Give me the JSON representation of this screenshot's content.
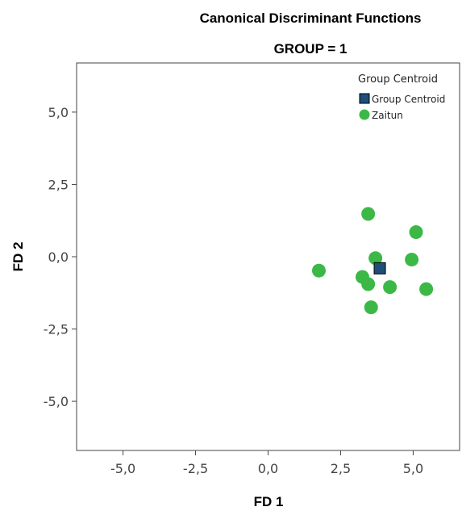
{
  "chart_data": {
    "type": "scatter",
    "title": "Canonical Discriminant Functions",
    "subtitle": "GROUP = 1",
    "xlabel": "FD 1",
    "ylabel": "FD 2",
    "xlim": [
      -6.6,
      6.6
    ],
    "ylim": [
      -6.7,
      6.7
    ],
    "xticks": [
      -5.0,
      -2.5,
      0.0,
      2.5,
      5.0
    ],
    "yticks": [
      -5.0,
      -2.5,
      0.0,
      2.5,
      5.0
    ],
    "xtick_labels": [
      "-5,0",
      "-2,5",
      "0,0",
      "2,5",
      "5,0"
    ],
    "ytick_labels": [
      "-5,0",
      "-2,5",
      "0,0",
      "2,5",
      "5,0"
    ],
    "grid": false,
    "legend": {
      "title": "Group Centroid",
      "placement": "top-right",
      "entries": [
        {
          "label": "Group Centroid",
          "marker": "square",
          "color": "#1f4e79"
        },
        {
          "label": "Zaitun",
          "marker": "circle",
          "color": "#3cb846"
        }
      ]
    },
    "series": [
      {
        "name": "Zaitun",
        "marker": "circle",
        "color": "#3cb846",
        "points": [
          {
            "x": 1.75,
            "y": -0.48
          },
          {
            "x": 3.25,
            "y": -0.7
          },
          {
            "x": 3.45,
            "y": 1.48
          },
          {
            "x": 3.45,
            "y": -0.95
          },
          {
            "x": 3.55,
            "y": -1.75
          },
          {
            "x": 3.7,
            "y": -0.05
          },
          {
            "x": 4.2,
            "y": -1.05
          },
          {
            "x": 4.95,
            "y": -0.1
          },
          {
            "x": 5.1,
            "y": 0.85
          },
          {
            "x": 5.45,
            "y": -1.12
          }
        ]
      },
      {
        "name": "Group Centroid",
        "marker": "square",
        "color": "#1f4e79",
        "points": [
          {
            "x": 3.85,
            "y": -0.4
          }
        ]
      }
    ]
  }
}
